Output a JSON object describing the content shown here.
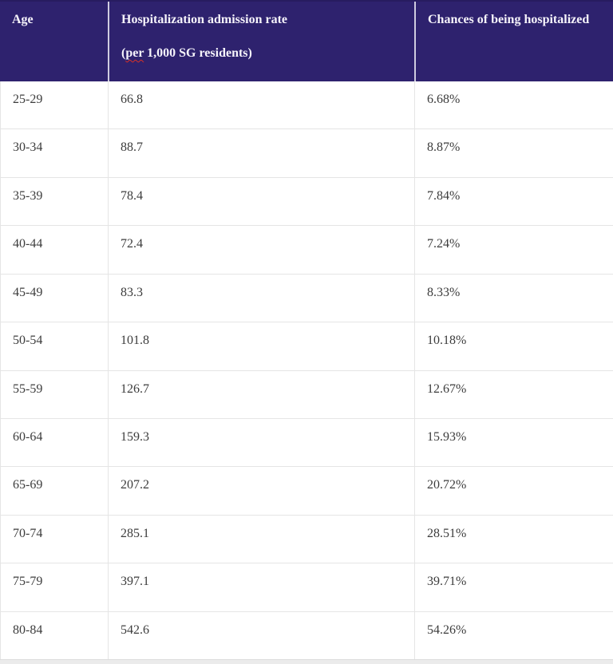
{
  "table": {
    "header": {
      "age_label": "Age",
      "rate_line1": "Hospitalization admission rate",
      "rate_line2_prefix": "(",
      "rate_line2_misspelled_word": "per",
      "rate_line2_rest": " 1,000 SG residents)",
      "chance_label": "Chances of being hospitalized"
    },
    "rows": [
      {
        "age": "25-29",
        "rate": "66.8",
        "chance": "6.68%"
      },
      {
        "age": "30-34",
        "rate": "88.7",
        "chance": "8.87%"
      },
      {
        "age": "35-39",
        "rate": "78.4",
        "chance": "7.84%"
      },
      {
        "age": "40-44",
        "rate": "72.4",
        "chance": "7.24%"
      },
      {
        "age": "45-49",
        "rate": "83.3",
        "chance": "8.33%"
      },
      {
        "age": "50-54",
        "rate": "101.8",
        "chance": "10.18%"
      },
      {
        "age": "55-59",
        "rate": "126.7",
        "chance": "12.67%"
      },
      {
        "age": "60-64",
        "rate": "159.3",
        "chance": "15.93%"
      },
      {
        "age": "65-69",
        "rate": "207.2",
        "chance": "20.72%"
      },
      {
        "age": "70-74",
        "rate": "285.1",
        "chance": "28.51%"
      },
      {
        "age": "75-79",
        "rate": "397.1",
        "chance": "39.71%"
      },
      {
        "age": "80-84",
        "rate": "542.6",
        "chance": "54.26%"
      }
    ]
  },
  "colors": {
    "header_background": "#2e226e",
    "header_text": "#f6f4fb",
    "header_divider": "#cfcce0",
    "body_text": "#3c3c3c",
    "grid_line": "#e5e5e5",
    "bottom_strip": "#ebebeb",
    "spellcheck_underline": "#d93025"
  }
}
